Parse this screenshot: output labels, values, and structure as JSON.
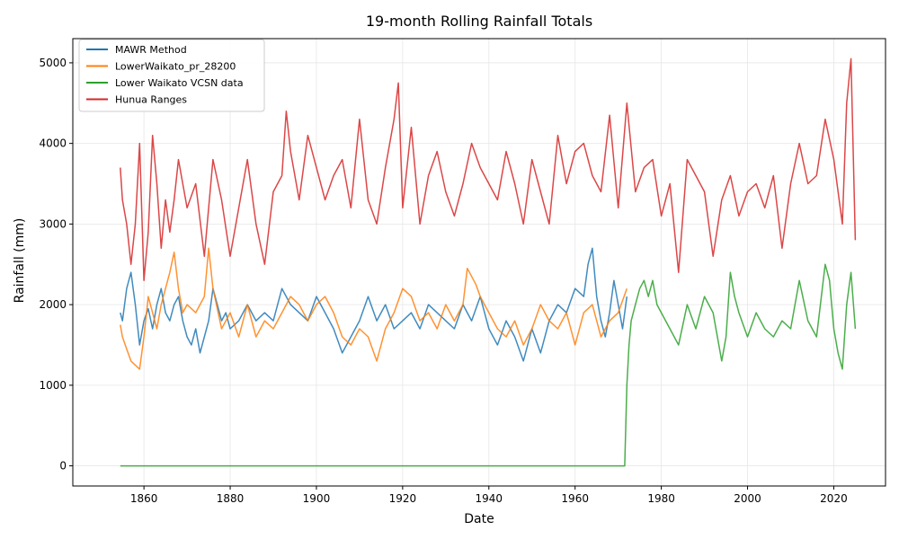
{
  "chart_data": {
    "type": "line",
    "title": "19-month Rolling Rainfall Totals",
    "xlabel": "Date",
    "ylabel": "Rainfall (mm)",
    "xlim": [
      1843.5,
      2032
    ],
    "ylim": [
      -250,
      5300
    ],
    "x_ticks": [
      1860,
      1880,
      1900,
      1920,
      1940,
      1960,
      1980,
      2000,
      2020
    ],
    "y_ticks": [
      0,
      1000,
      2000,
      3000,
      4000,
      5000
    ],
    "grid": true,
    "legend_position": "top-left",
    "series": [
      {
        "name": "MAWR Method",
        "color": "#1f77b4",
        "x": [
          1854.5,
          1855,
          1856,
          1857,
          1858,
          1859,
          1860,
          1861,
          1862,
          1863,
          1864,
          1865,
          1866,
          1867,
          1868,
          1869,
          1870,
          1871,
          1872,
          1873,
          1874,
          1875,
          1876,
          1877,
          1878,
          1879,
          1880,
          1882,
          1884,
          1886,
          1888,
          1890,
          1892,
          1894,
          1896,
          1898,
          1900,
          1902,
          1904,
          1906,
          1908,
          1910,
          1912,
          1914,
          1916,
          1918,
          1920,
          1922,
          1924,
          1926,
          1928,
          1930,
          1932,
          1934,
          1936,
          1938,
          1940,
          1942,
          1944,
          1946,
          1948,
          1950,
          1952,
          1954,
          1956,
          1958,
          1960,
          1962,
          1963,
          1964,
          1965,
          1966,
          1967,
          1968,
          1969,
          1970,
          1971,
          1972
        ],
        "y": [
          1900,
          1800,
          2200,
          2400,
          2000,
          1500,
          1800,
          1950,
          1700,
          2000,
          2200,
          1900,
          1800,
          2000,
          2100,
          1800,
          1600,
          1500,
          1700,
          1400,
          1600,
          1800,
          2200,
          2000,
          1800,
          1900,
          1700,
          1800,
          2000,
          1800,
          1900,
          1800,
          2200,
          2000,
          1900,
          1800,
          2100,
          1900,
          1700,
          1400,
          1600,
          1800,
          2100,
          1800,
          2000,
          1700,
          1800,
          1900,
          1700,
          2000,
          1900,
          1800,
          1700,
          2000,
          1800,
          2100,
          1700,
          1500,
          1800,
          1600,
          1300,
          1700,
          1400,
          1800,
          2000,
          1900,
          2200,
          2100,
          2500,
          2700,
          2100,
          1800,
          1600,
          1900,
          2300,
          2000,
          1700,
          2100
        ]
      },
      {
        "name": "LowerWaikato_pr_28200",
        "color": "#ff7f0e",
        "x": [
          1854.5,
          1855,
          1856,
          1857,
          1858,
          1859,
          1860,
          1861,
          1862,
          1863,
          1864,
          1865,
          1866,
          1867,
          1868,
          1869,
          1870,
          1872,
          1874,
          1875,
          1876,
          1878,
          1880,
          1882,
          1884,
          1886,
          1888,
          1890,
          1892,
          1894,
          1896,
          1898,
          1900,
          1902,
          1904,
          1906,
          1908,
          1910,
          1912,
          1914,
          1916,
          1918,
          1920,
          1922,
          1924,
          1926,
          1928,
          1930,
          1932,
          1934,
          1935,
          1936,
          1937,
          1938,
          1940,
          1942,
          1944,
          1946,
          1948,
          1950,
          1952,
          1954,
          1956,
          1958,
          1960,
          1962,
          1964,
          1966,
          1968,
          1970,
          1972
        ],
        "y": [
          1750,
          1600,
          1450,
          1300,
          1250,
          1200,
          1600,
          2100,
          1900,
          1700,
          2000,
          2200,
          2400,
          2650,
          2200,
          1900,
          2000,
          1900,
          2100,
          2700,
          2200,
          1700,
          1900,
          1600,
          2000,
          1600,
          1800,
          1700,
          1900,
          2100,
          2000,
          1800,
          2000,
          2100,
          1900,
          1600,
          1500,
          1700,
          1600,
          1300,
          1700,
          1900,
          2200,
          2100,
          1800,
          1900,
          1700,
          2000,
          1800,
          2000,
          2450,
          2350,
          2250,
          2100,
          1900,
          1700,
          1600,
          1800,
          1500,
          1700,
          2000,
          1800,
          1700,
          1900,
          1500,
          1900,
          2000,
          1600,
          1800,
          1900,
          2200
        ]
      },
      {
        "name": "Lower Waikato VCSN data",
        "color": "#2ca02c",
        "x": [
          1854.5,
          1900,
          1950,
          1971.5,
          1972,
          1972.5,
          1973,
          1974,
          1975,
          1976,
          1977,
          1978,
          1979,
          1980,
          1982,
          1984,
          1986,
          1988,
          1990,
          1992,
          1994,
          1995,
          1996,
          1997,
          1998,
          2000,
          2002,
          2004,
          2006,
          2008,
          2010,
          2012,
          2014,
          2016,
          2018,
          2019,
          2020,
          2021,
          2022,
          2023,
          2024,
          2025
        ],
        "y": [
          0,
          0,
          0,
          0,
          1000,
          1500,
          1800,
          2000,
          2200,
          2300,
          2100,
          2300,
          2000,
          1900,
          1700,
          1500,
          2000,
          1700,
          2100,
          1900,
          1300,
          1600,
          2400,
          2100,
          1900,
          1600,
          1900,
          1700,
          1600,
          1800,
          1700,
          2300,
          1800,
          1600,
          2500,
          2300,
          1700,
          1400,
          1200,
          2000,
          2400,
          1700
        ]
      },
      {
        "name": "Hunua Ranges",
        "color": "#d62728",
        "x": [
          1854.5,
          1855,
          1856,
          1857,
          1858,
          1859,
          1860,
          1861,
          1862,
          1863,
          1864,
          1865,
          1866,
          1867,
          1868,
          1870,
          1872,
          1874,
          1876,
          1878,
          1880,
          1882,
          1884,
          1886,
          1888,
          1890,
          1892,
          1893,
          1894,
          1896,
          1898,
          1900,
          1902,
          1904,
          1906,
          1908,
          1910,
          1912,
          1914,
          1916,
          1918,
          1919,
          1920,
          1922,
          1924,
          1926,
          1928,
          1930,
          1932,
          1934,
          1936,
          1938,
          1940,
          1942,
          1944,
          1946,
          1948,
          1950,
          1952,
          1954,
          1956,
          1958,
          1960,
          1962,
          1964,
          1966,
          1968,
          1970,
          1972,
          1974,
          1976,
          1978,
          1980,
          1982,
          1984,
          1986,
          1988,
          1990,
          1992,
          1994,
          1996,
          1998,
          2000,
          2002,
          2004,
          2006,
          2008,
          2010,
          2012,
          2014,
          2016,
          2018,
          2020,
          2022,
          2023,
          2024,
          2025
        ],
        "y": [
          3700,
          3300,
          3000,
          2500,
          3000,
          4000,
          2300,
          2900,
          4100,
          3500,
          2700,
          3300,
          2900,
          3300,
          3800,
          3200,
          3500,
          2600,
          3800,
          3300,
          2600,
          3200,
          3800,
          3000,
          2500,
          3400,
          3600,
          4400,
          3900,
          3300,
          4100,
          3700,
          3300,
          3600,
          3800,
          3200,
          4300,
          3300,
          3000,
          3700,
          4300,
          4750,
          3200,
          4200,
          3000,
          3600,
          3900,
          3400,
          3100,
          3500,
          4000,
          3700,
          3500,
          3300,
          3900,
          3500,
          3000,
          3800,
          3400,
          3000,
          4100,
          3500,
          3900,
          4000,
          3600,
          3400,
          4350,
          3200,
          4500,
          3400,
          3700,
          3800,
          3100,
          3500,
          2400,
          3800,
          3600,
          3400,
          2600,
          3300,
          3600,
          3100,
          3400,
          3500,
          3200,
          3600,
          2700,
          3500,
          4000,
          3500,
          3600,
          4300,
          3800,
          3000,
          4500,
          5050,
          2800
        ]
      }
    ]
  }
}
